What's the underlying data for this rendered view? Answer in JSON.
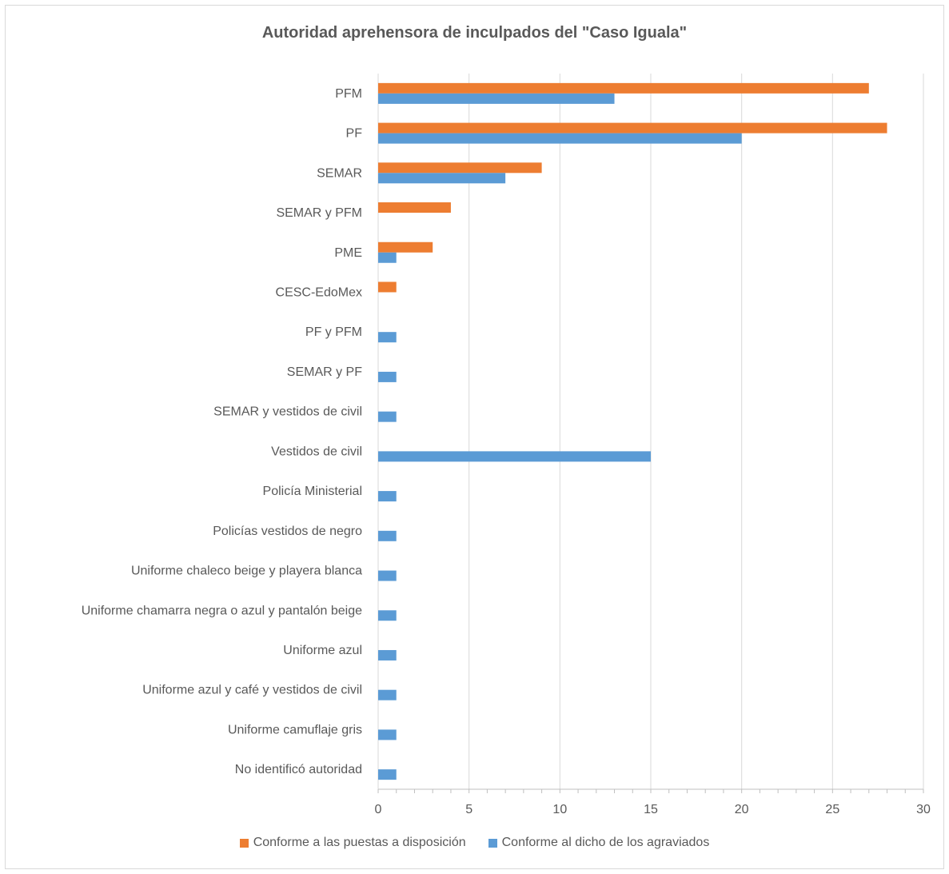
{
  "chart_data": {
    "type": "bar",
    "orientation": "horizontal",
    "title": "Autoridad aprehensora de inculpados del \"Caso Iguala\"",
    "categories": [
      "PFM",
      "PF",
      "SEMAR",
      "SEMAR y PFM",
      "PME",
      "CESC-EdoMex",
      "PF y PFM",
      "SEMAR y PF",
      "SEMAR y vestidos de civil",
      "Vestidos de civil",
      "Policía Ministerial",
      "Policías vestidos de negro",
      "Uniforme chaleco beige y playera blanca",
      "Uniforme chamarra negra o azul y pantalón beige",
      "Uniforme azul",
      "Uniforme azul y café y vestidos de civil",
      "Uniforme camuflaje gris",
      "No identificó autoridad"
    ],
    "series": [
      {
        "name": "Conforme a las puestas a disposición",
        "color": "#ed7d31",
        "values": [
          27,
          28,
          9,
          4,
          3,
          1,
          0,
          0,
          0,
          0,
          0,
          0,
          0,
          0,
          0,
          0,
          0,
          0
        ]
      },
      {
        "name": "Conforme al dicho de los agraviados",
        "color": "#5b9bd5",
        "values": [
          13,
          20,
          7,
          0,
          1,
          0,
          1,
          1,
          1,
          15,
          1,
          1,
          1,
          1,
          1,
          1,
          1,
          1
        ]
      }
    ],
    "xlim": [
      0,
      30
    ],
    "xticks": [
      0,
      5,
      10,
      15,
      20,
      25,
      30
    ],
    "grid": true,
    "legend": "bottom"
  }
}
